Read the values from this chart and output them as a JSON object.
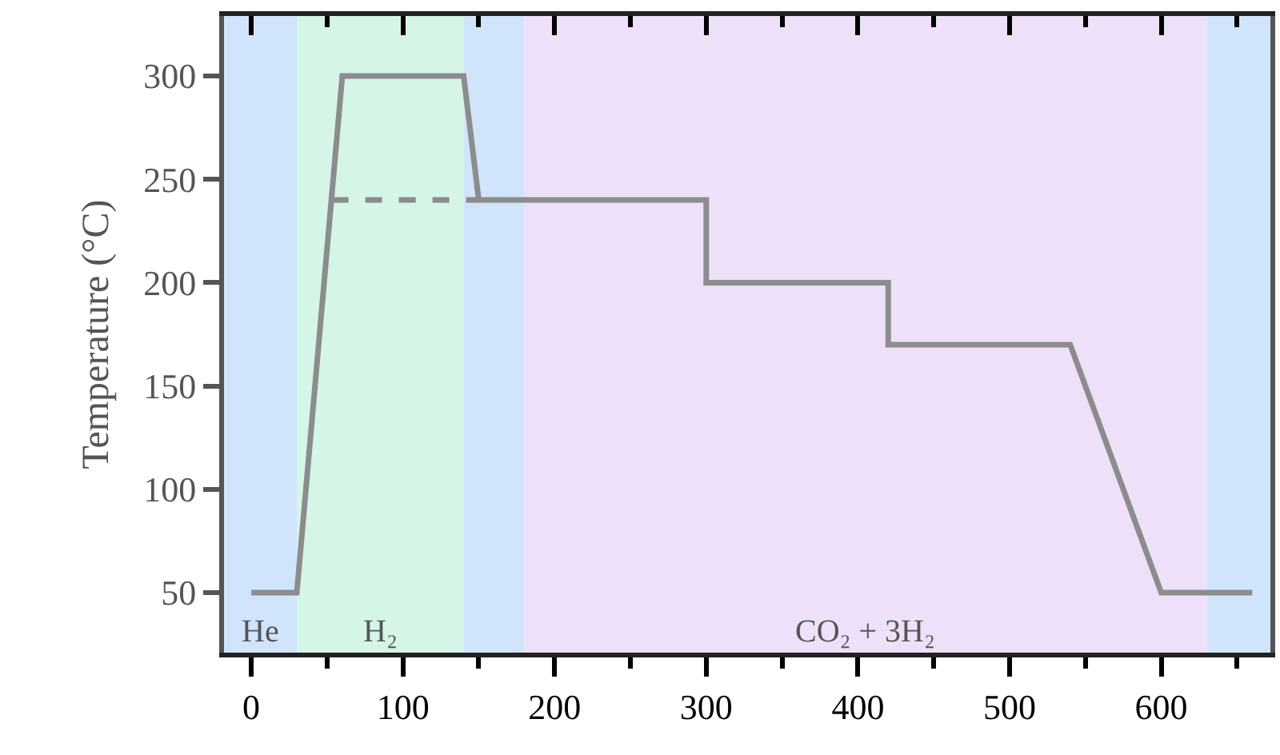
{
  "chart_data": {
    "type": "line",
    "ylabel": "Temperature (°C)",
    "series": [
      {
        "color": "#8c8c8c",
        "line_style": "solid",
        "x": [
          0,
          30,
          60,
          140,
          150,
          300,
          300,
          420,
          420,
          540,
          600,
          660
        ],
        "values": [
          50,
          50,
          300,
          300,
          240,
          240,
          200,
          200,
          170,
          170,
          50,
          50
        ]
      },
      {
        "color": "#8c8c8c",
        "line_style": "dashed",
        "x": [
          53,
          150
        ],
        "values": [
          240,
          240
        ]
      }
    ],
    "bands": [
      {
        "axis": "x",
        "from": -18,
        "to": 30,
        "label": "He",
        "color": "#d0e4fc"
      },
      {
        "axis": "x",
        "from": 30,
        "to": 140,
        "label": "H₂",
        "color": "#d5f5e6"
      },
      {
        "axis": "x",
        "from": 140,
        "to": 180,
        "color": "#d0e4fc"
      },
      {
        "axis": "x",
        "from": 180,
        "to": 630,
        "label": "CO₂ + 3H₂",
        "color": "#ede0f8"
      },
      {
        "axis": "x",
        "from": 630,
        "to": 672,
        "color": "#d0e4fc"
      }
    ],
    "xlim": [
      -18,
      672
    ],
    "xticks": [
      0,
      100,
      200,
      300,
      400,
      500,
      600
    ],
    "ylim": [
      21,
      329
    ],
    "yticks": [
      50,
      100,
      150,
      200,
      250,
      300
    ],
    "grid": false,
    "marker": "none"
  }
}
